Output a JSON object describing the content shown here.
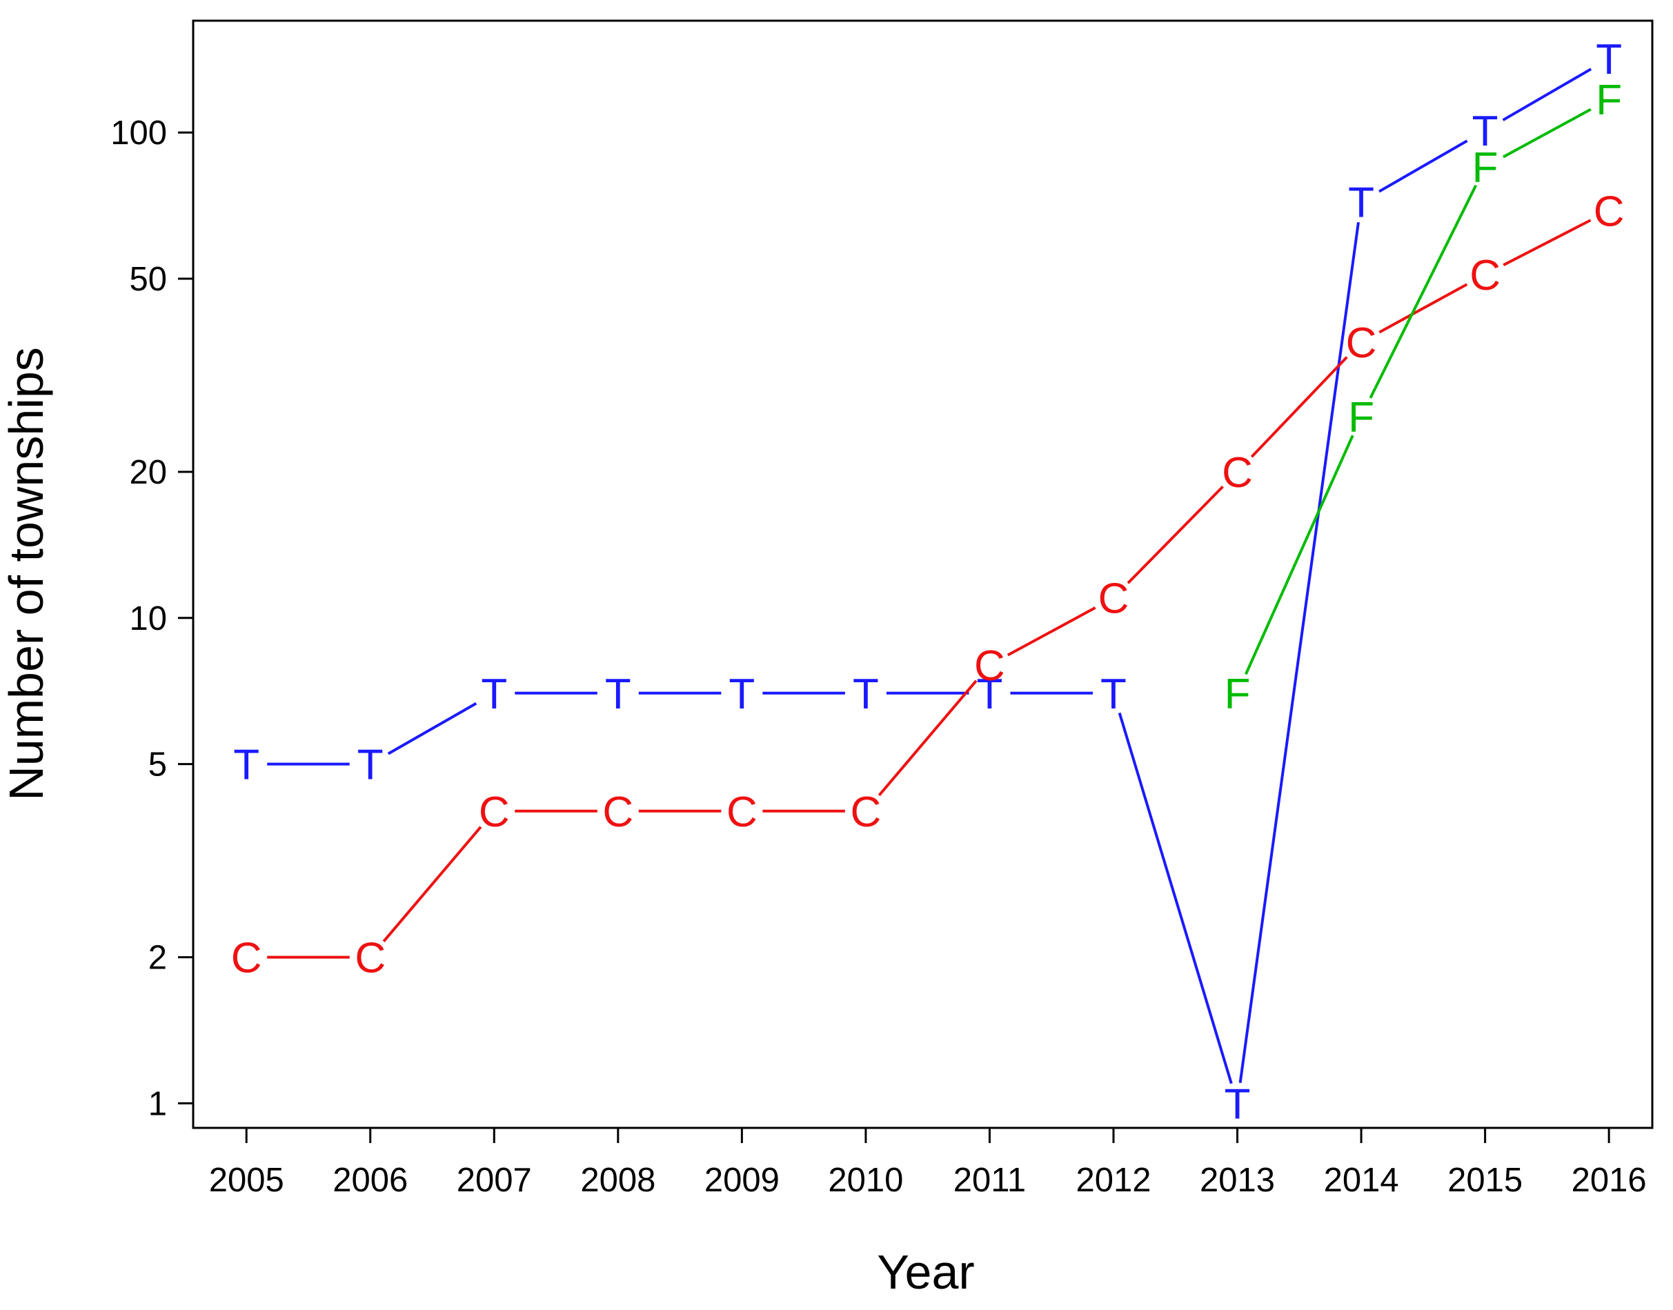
{
  "chart_data": {
    "type": "line",
    "xlabel": "Year",
    "ylabel": "Number of townships",
    "x": [
      2005,
      2006,
      2007,
      2008,
      2009,
      2010,
      2011,
      2012,
      2013,
      2014,
      2015,
      2016
    ],
    "xlim": [
      2004.57,
      2016.35
    ],
    "ylim": [
      0.89,
      170
    ],
    "yscale": "log",
    "yticks": [
      1,
      2,
      5,
      10,
      20,
      50,
      100
    ],
    "grid": false,
    "legend": "none",
    "series": [
      {
        "marker": "T",
        "color": "#1a1aff",
        "segments": [
          {
            "x": [
              2005,
              2006,
              2007,
              2008,
              2009,
              2010,
              2011,
              2012,
              2013,
              2014,
              2015,
              2016
            ],
            "y": [
              5,
              5,
              7,
              7,
              7,
              7,
              7,
              7,
              1,
              72,
              101,
              142
            ]
          }
        ]
      },
      {
        "marker": "C",
        "color": "#ee1111",
        "segments": [
          {
            "x": [
              2005,
              2006,
              2007,
              2008,
              2009,
              2010,
              2011,
              2012,
              2013,
              2014,
              2015,
              2016
            ],
            "y": [
              2,
              2,
              4,
              4,
              4,
              4,
              8,
              11,
              20,
              37,
              51,
              69
            ]
          }
        ]
      },
      {
        "marker": "F",
        "color": "#00bb00",
        "segments": [
          {
            "x": [
              2013,
              2014,
              2015,
              2016
            ],
            "y": [
              7,
              26,
              85,
              117
            ]
          }
        ]
      }
    ]
  }
}
